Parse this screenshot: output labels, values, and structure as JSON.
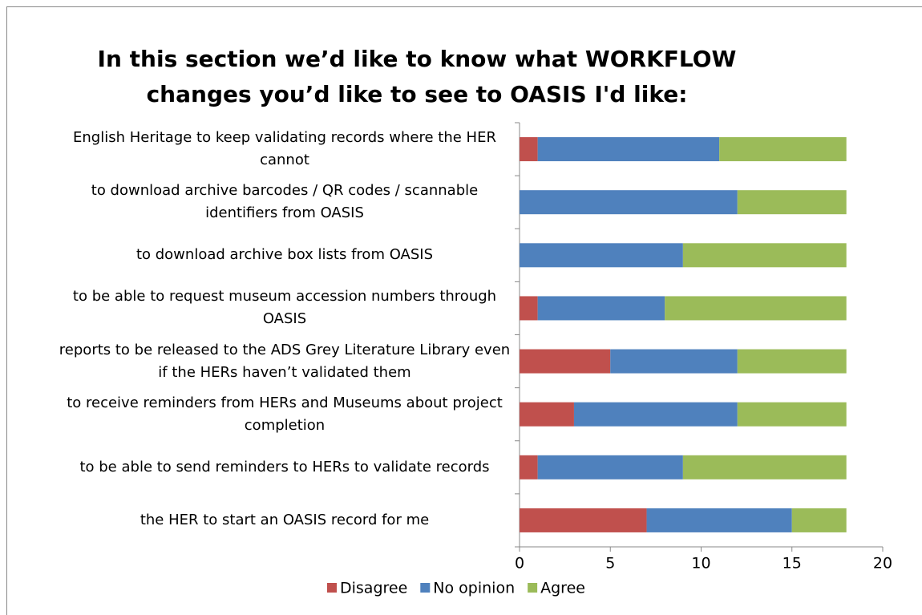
{
  "chart_data": {
    "type": "stacked-barh",
    "title": "In this section we’d like to know what WORKFLOW changes you’d like to see to OASIS I'd like:",
    "categories": [
      "English Heritage to keep validating records where the HER cannot",
      "to download archive barcodes / QR codes / scannable identifiers from OASIS",
      "to download archive box lists from OASIS",
      "to be able to request museum accession numbers through OASIS",
      "reports to be released to the ADS Grey Literature Library even if the HERs haven’t validated them",
      "to receive reminders from HERs and Museums about project completion",
      "to be able to send reminders to HERs to validate records",
      "the HER to start an OASIS record for me"
    ],
    "series": [
      {
        "name": "Disagree",
        "color": "#c0504d",
        "values": [
          1,
          0,
          0,
          1,
          5,
          3,
          1,
          7
        ]
      },
      {
        "name": "No opinion",
        "color": "#4f81bd",
        "values": [
          10,
          12,
          9,
          7,
          7,
          9,
          8,
          8
        ]
      },
      {
        "name": "Agree",
        "color": "#9bbb59",
        "values": [
          7,
          6,
          9,
          10,
          6,
          6,
          9,
          3
        ]
      }
    ],
    "xlim": [
      0,
      20
    ],
    "xticks": [
      0,
      5,
      10,
      15,
      20
    ],
    "legend": "bottom"
  }
}
